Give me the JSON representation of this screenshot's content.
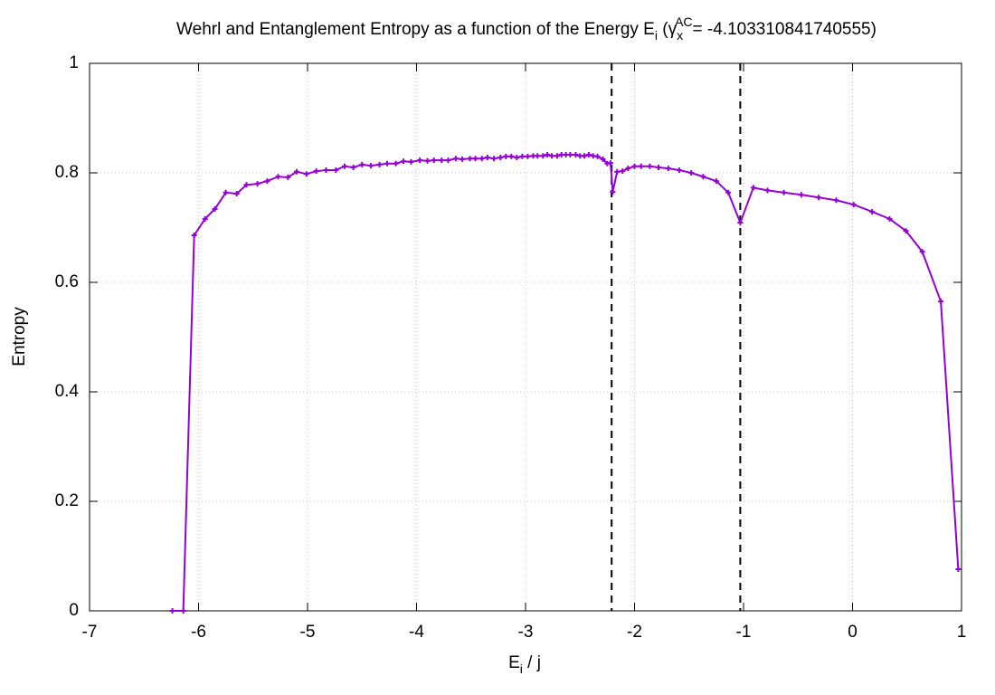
{
  "chart_data": {
    "type": "line",
    "title_parts": [
      "Wehrl and Entanglement Entropy as a function of the Energy E",
      "i",
      " (γ",
      "x",
      "AC",
      "= -4.103310841740555)"
    ],
    "xlabel_parts": [
      "E",
      "i",
      " / j"
    ],
    "ylabel": "Entropy",
    "color": "#9400d3",
    "x": [
      -6.24,
      -6.14,
      -6.04,
      -5.94,
      -5.85,
      -5.75,
      -5.65,
      -5.56,
      -5.46,
      -5.37,
      -5.27,
      -5.18,
      -5.1,
      -5.01,
      -4.92,
      -4.83,
      -4.74,
      -4.66,
      -4.58,
      -4.5,
      -4.42,
      -4.34,
      -4.27,
      -4.19,
      -4.12,
      -4.05,
      -3.97,
      -3.9,
      -3.84,
      -3.77,
      -3.71,
      -3.64,
      -3.58,
      -3.51,
      -3.46,
      -3.4,
      -3.35,
      -3.29,
      -3.23,
      -3.18,
      -3.13,
      -3.08,
      -3.03,
      -2.98,
      -2.93,
      -2.89,
      -2.84,
      -2.8,
      -2.76,
      -2.71,
      -2.67,
      -2.63,
      -2.59,
      -2.54,
      -2.5,
      -2.46,
      -2.42,
      -2.38,
      -2.34,
      -2.29,
      -2.25,
      -2.22,
      -2.2,
      -2.16,
      -2.11,
      -2.06,
      -2.0,
      -1.94,
      -1.86,
      -1.78,
      -1.69,
      -1.59,
      -1.48,
      -1.37,
      -1.25,
      -1.14,
      -1.03,
      -0.91,
      -0.78,
      -0.63,
      -0.47,
      -0.31,
      -0.15,
      0.01,
      0.18,
      0.34,
      0.49,
      0.64,
      0.81,
      0.97
    ],
    "values": [
      0,
      0,
      0.686,
      0.716,
      0.734,
      0.764,
      0.762,
      0.778,
      0.78,
      0.785,
      0.793,
      0.792,
      0.802,
      0.798,
      0.803,
      0.805,
      0.805,
      0.812,
      0.81,
      0.815,
      0.813,
      0.815,
      0.817,
      0.817,
      0.821,
      0.82,
      0.823,
      0.822,
      0.823,
      0.823,
      0.823,
      0.826,
      0.825,
      0.826,
      0.826,
      0.826,
      0.828,
      0.826,
      0.828,
      0.83,
      0.83,
      0.828,
      0.83,
      0.83,
      0.831,
      0.831,
      0.831,
      0.833,
      0.831,
      0.831,
      0.833,
      0.833,
      0.833,
      0.833,
      0.831,
      0.831,
      0.833,
      0.831,
      0.83,
      0.825,
      0.817,
      0.818,
      0.765,
      0.802,
      0.803,
      0.808,
      0.812,
      0.812,
      0.812,
      0.81,
      0.808,
      0.805,
      0.8,
      0.793,
      0.785,
      0.764,
      0.709,
      0.773,
      0.768,
      0.764,
      0.76,
      0.755,
      0.75,
      0.742,
      0.729,
      0.716,
      0.694,
      0.656,
      0.565,
      0.076
    ],
    "vlines": [
      -2.21,
      -1.03
    ],
    "xlim": [
      -7,
      1
    ],
    "xticks": [
      -7,
      -6,
      -5,
      -4,
      -3,
      -2,
      -1,
      0,
      1
    ],
    "ylim": [
      0,
      1
    ],
    "yticks": [
      0,
      0.2,
      0.4,
      0.6,
      0.8,
      1
    ],
    "grid": true
  }
}
